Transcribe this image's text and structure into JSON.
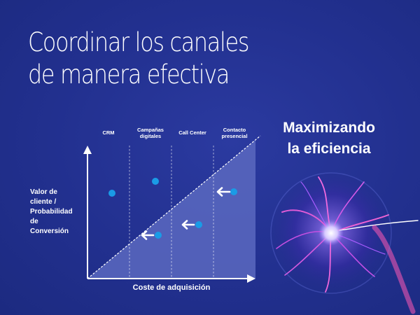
{
  "slide": {
    "title_lines": [
      "Coordinar los canales",
      "de manera efectiva"
    ],
    "side_title_lines": [
      "Maximizando",
      "la eficiencia"
    ]
  },
  "diagram": {
    "y_axis_label_lines": [
      "Valor de",
      "cliente /",
      "Probabilidad",
      "de",
      "Conversión"
    ],
    "x_axis_label": "Coste de adquisición",
    "columns": [
      {
        "label_lines": [
          "CRM"
        ]
      },
      {
        "label_lines": [
          "Campañas",
          "digitales"
        ]
      },
      {
        "label_lines": [
          "Call Center"
        ]
      },
      {
        "label_lines": [
          "Contacto",
          "presencial"
        ]
      }
    ],
    "dot_color": "#1a9be6",
    "arrow_icon": "arrow-left-icon"
  },
  "image": {
    "subject": "plasma-ball-icon"
  },
  "colors": {
    "background": "#22308f",
    "triangle_fill": "#5a68c0",
    "text": "#ffffff"
  }
}
